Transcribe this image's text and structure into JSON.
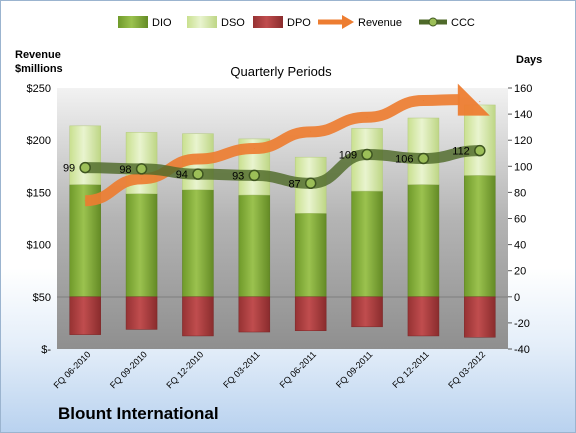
{
  "chart_data": {
    "type": "bar",
    "title": "Quarterly Periods",
    "company": "Blount International",
    "ylabel_left": "Revenue\n$millions",
    "ylabel_right": "Days",
    "y_left_ticks": [
      "$-",
      "$50",
      "$100",
      "$150",
      "$200",
      "$250"
    ],
    "ylim_left": [
      0,
      250
    ],
    "ylim_right": [
      -40,
      160
    ],
    "y_right_ticks": [
      -40,
      -20,
      0,
      20,
      40,
      60,
      80,
      100,
      120,
      140,
      160
    ],
    "categories": [
      "FQ 06-2010",
      "FQ 09-2010",
      "FQ 12-2010",
      "FQ 03-2011",
      "FQ 06-2011",
      "FQ 09-2011",
      "FQ 12-2011",
      "FQ 03-2012"
    ],
    "series": [
      {
        "name": "DIO",
        "axis": "right",
        "kind": "stacked-bar",
        "color": "#7da435",
        "values": [
          86,
          79,
          82,
          78,
          64,
          81,
          86,
          93
        ]
      },
      {
        "name": "DSO",
        "axis": "right",
        "kind": "stacked-bar",
        "color": "#d6e9a8",
        "values": [
          45,
          47,
          43,
          43,
          43,
          48,
          51,
          54
        ]
      },
      {
        "name": "DPO",
        "axis": "right",
        "kind": "negative-bar",
        "color": "#a8393a",
        "values": [
          -29,
          -25,
          -30,
          -27,
          -26,
          -23,
          -30,
          -31
        ]
      },
      {
        "name": "Revenue",
        "axis": "left",
        "kind": "arrow-line",
        "color": "#ed7d31",
        "values": [
          142,
          163,
          182,
          192,
          208,
          222,
          238,
          237
        ]
      },
      {
        "name": "CCC",
        "axis": "right",
        "kind": "line-markers",
        "color": "#556b2f",
        "values": [
          99,
          98,
          94,
          93,
          87,
          109,
          106,
          112
        ]
      }
    ],
    "ccc_labels": [
      "99",
      "98",
      "94",
      "93",
      "87",
      "109",
      "106",
      "112"
    ],
    "legend": [
      "DIO",
      "DSO",
      "DPO",
      "Revenue",
      "CCC"
    ],
    "legend_position": "top",
    "grid": false
  }
}
